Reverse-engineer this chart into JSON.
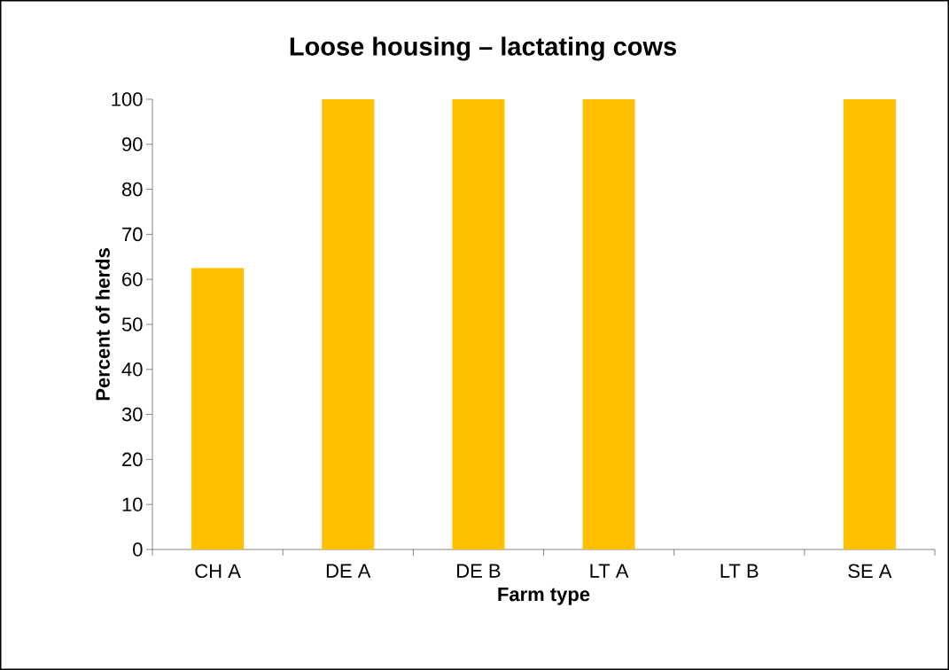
{
  "chart_data": {
    "type": "bar",
    "title": "Loose housing – lactating cows",
    "xlabel": "Farm type",
    "ylabel": "Percent of herds",
    "categories": [
      "CH A",
      "DE A",
      "DE B",
      "LT A",
      "LT B",
      "SE A"
    ],
    "values": [
      62.5,
      100,
      100,
      100,
      0,
      100
    ],
    "color": "#ffc000",
    "ylim": [
      0,
      100
    ],
    "yticks": [
      0,
      10,
      20,
      30,
      40,
      50,
      60,
      70,
      80,
      90,
      100
    ],
    "grid": false
  }
}
